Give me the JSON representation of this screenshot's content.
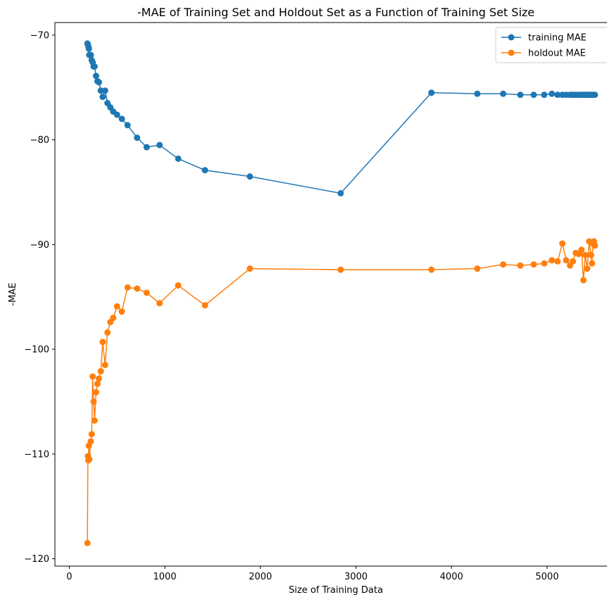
{
  "chart_data": {
    "type": "line",
    "title": "-MAE of Training Set and Holdout Set as a Function of Training Set Size",
    "xlabel": "Size of Training Data",
    "ylabel": "-MAE",
    "xlim": [
      -150,
      5730
    ],
    "ylim": [
      -120.7,
      -68.8
    ],
    "xticks": [
      0,
      1000,
      2000,
      3000,
      4000,
      5000
    ],
    "yticks": [
      -70,
      -80,
      -90,
      -100,
      -110,
      -120
    ],
    "grid": false,
    "legend_position": "top-right",
    "colors": {
      "training": "#1f77b4",
      "holdout": "#ff7f0e"
    },
    "series": [
      {
        "name": "training MAE",
        "color": "#1f77b4",
        "points": [
          [
            190,
            -70.8
          ],
          [
            195,
            -70.9
          ],
          [
            200,
            -71.1
          ],
          [
            205,
            -71.3
          ],
          [
            210,
            -71.9
          ],
          [
            225,
            -71.9
          ],
          [
            235,
            -72.4
          ],
          [
            245,
            -72.6
          ],
          [
            255,
            -73.0
          ],
          [
            265,
            -73.0
          ],
          [
            280,
            -73.9
          ],
          [
            295,
            -74.4
          ],
          [
            310,
            -74.5
          ],
          [
            330,
            -75.3
          ],
          [
            350,
            -75.9
          ],
          [
            375,
            -75.3
          ],
          [
            400,
            -76.5
          ],
          [
            430,
            -76.9
          ],
          [
            460,
            -77.3
          ],
          [
            500,
            -77.6
          ],
          [
            550,
            -78.0
          ],
          [
            610,
            -78.6
          ],
          [
            710,
            -79.8
          ],
          [
            810,
            -80.7
          ],
          [
            945,
            -80.5
          ],
          [
            1140,
            -81.8
          ],
          [
            1420,
            -82.9
          ],
          [
            1890,
            -83.5
          ],
          [
            2840,
            -85.1
          ],
          [
            3790,
            -75.5
          ],
          [
            4270,
            -75.6
          ],
          [
            4540,
            -75.6
          ],
          [
            4720,
            -75.7
          ],
          [
            4860,
            -75.7
          ],
          [
            4970,
            -75.7
          ],
          [
            5050,
            -75.6
          ],
          [
            5110,
            -75.7
          ],
          [
            5160,
            -75.7
          ],
          [
            5200,
            -75.7
          ],
          [
            5240,
            -75.7
          ],
          [
            5270,
            -75.7
          ],
          [
            5300,
            -75.7
          ],
          [
            5330,
            -75.7
          ],
          [
            5360,
            -75.7
          ],
          [
            5380,
            -75.7
          ],
          [
            5400,
            -75.7
          ],
          [
            5420,
            -75.7
          ],
          [
            5440,
            -75.7
          ],
          [
            5460,
            -75.7
          ],
          [
            5480,
            -75.7
          ],
          [
            5500,
            -75.7
          ]
        ]
      },
      {
        "name": "holdout MAE",
        "color": "#ff7f0e",
        "points": [
          [
            190,
            -118.5
          ],
          [
            195,
            -110.2
          ],
          [
            200,
            -110.6
          ],
          [
            205,
            -109.2
          ],
          [
            210,
            -110.5
          ],
          [
            225,
            -108.8
          ],
          [
            235,
            -108.1
          ],
          [
            245,
            -102.6
          ],
          [
            255,
            -105.0
          ],
          [
            265,
            -106.8
          ],
          [
            280,
            -104.1
          ],
          [
            295,
            -103.3
          ],
          [
            310,
            -102.8
          ],
          [
            330,
            -102.1
          ],
          [
            350,
            -99.3
          ],
          [
            375,
            -101.5
          ],
          [
            400,
            -98.4
          ],
          [
            430,
            -97.4
          ],
          [
            460,
            -97.0
          ],
          [
            500,
            -95.9
          ],
          [
            550,
            -96.4
          ],
          [
            610,
            -94.1
          ],
          [
            710,
            -94.2
          ],
          [
            810,
            -94.6
          ],
          [
            945,
            -95.6
          ],
          [
            1140,
            -93.9
          ],
          [
            1420,
            -95.8
          ],
          [
            1890,
            -92.3
          ],
          [
            2840,
            -92.4
          ],
          [
            3790,
            -92.4
          ],
          [
            4270,
            -92.3
          ],
          [
            4540,
            -91.9
          ],
          [
            4720,
            -92.0
          ],
          [
            4860,
            -91.9
          ],
          [
            4970,
            -91.8
          ],
          [
            5050,
            -91.5
          ],
          [
            5110,
            -91.6
          ],
          [
            5160,
            -89.9
          ],
          [
            5200,
            -91.5
          ],
          [
            5240,
            -92.0
          ],
          [
            5270,
            -91.6
          ],
          [
            5300,
            -90.8
          ],
          [
            5330,
            -90.9
          ],
          [
            5360,
            -90.5
          ],
          [
            5380,
            -93.4
          ],
          [
            5400,
            -91.0
          ],
          [
            5420,
            -92.3
          ],
          [
            5440,
            -89.7
          ],
          [
            5460,
            -91.0
          ],
          [
            5470,
            -91.8
          ],
          [
            5480,
            -89.9
          ],
          [
            5490,
            -89.7
          ],
          [
            5500,
            -90.1
          ]
        ]
      }
    ]
  }
}
